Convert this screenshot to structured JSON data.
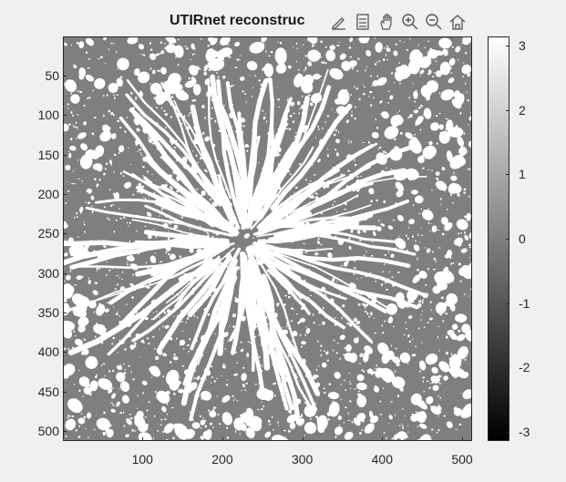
{
  "figure": {
    "title": "UTIRnet reconstruc",
    "toolbar": {
      "items": [
        {
          "name": "edit-icon"
        },
        {
          "name": "data-tips-icon"
        },
        {
          "name": "pan-icon"
        },
        {
          "name": "zoom-in-icon"
        },
        {
          "name": "zoom-out-icon"
        },
        {
          "name": "home-icon"
        }
      ]
    }
  },
  "axes": {
    "y_ticks": [
      "50",
      "100",
      "150",
      "200",
      "250",
      "300",
      "350",
      "400",
      "450",
      "500"
    ],
    "x_ticks": [
      "100",
      "200",
      "300",
      "400",
      "500"
    ]
  },
  "colorbar": {
    "ticks": [
      "3",
      "2",
      "1",
      "0",
      "-1",
      "-2",
      "-3"
    ],
    "colormap": "gray",
    "range": [
      -3.14,
      3.14
    ],
    "low_color": "#000000",
    "high_color": "#ffffff"
  },
  "image": {
    "background_color": "#7f7f7f",
    "feature_color": "#ffffff"
  }
}
